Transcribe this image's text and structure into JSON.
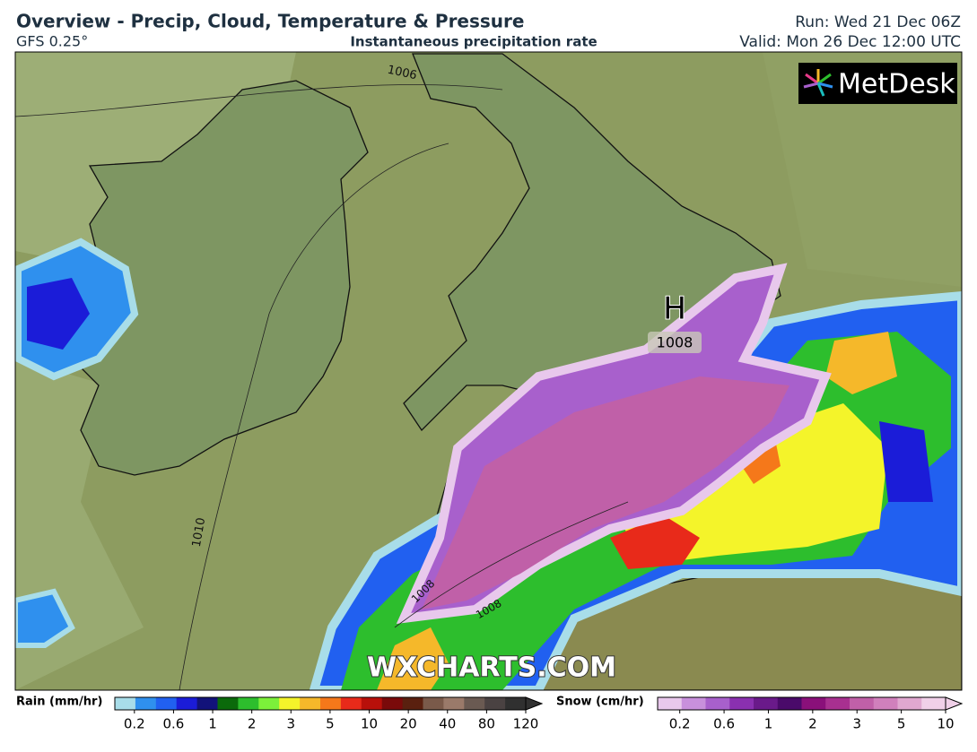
{
  "header": {
    "title": "Overview - Precip, Cloud, Temperature & Pressure",
    "model": "GFS 0.25°",
    "field": "Instantaneous precipitation rate",
    "run": "Run: Wed 21 Dec 06Z",
    "valid": "Valid: Mon 26 Dec 12:00 UTC"
  },
  "logo": {
    "text": "MetDesk"
  },
  "map": {
    "high": {
      "symbol": "H",
      "pressure": "1008"
    },
    "isobar_labels": [
      "1006",
      "1010",
      "1008",
      "1008"
    ],
    "watermark": "WXCHARTS.COM"
  },
  "legend": {
    "rain": {
      "label": "Rain (mm/hr)",
      "ticks": [
        0.2,
        0.6,
        1,
        2,
        3,
        5,
        10,
        20,
        40,
        80,
        120
      ],
      "colors": [
        "#a8dde9",
        "#2f90ee",
        "#2160f0",
        "#1b1cd8",
        "#12127a",
        "#0b6a0b",
        "#2dbe2d",
        "#7cf03a",
        "#f4f42a",
        "#f5b82a",
        "#f5781a",
        "#e82a1a",
        "#b8100a",
        "#7a0a0a",
        "#5a200f",
        "#7a5a4a",
        "#9a7a6a",
        "#6a5a52",
        "#4a4242",
        "#303030"
      ]
    },
    "snow": {
      "label": "Snow (cm/hr)",
      "ticks": [
        0.2,
        0.6,
        1,
        2,
        3,
        5,
        10
      ],
      "colors": [
        "#e8c8ec",
        "#c890dc",
        "#a860cc",
        "#8a30b0",
        "#6a1a8a",
        "#4a0a6a",
        "#8a107a",
        "#a83090",
        "#c060a8",
        "#d080bc",
        "#e0a8d0",
        "#f0d0e8"
      ]
    }
  }
}
